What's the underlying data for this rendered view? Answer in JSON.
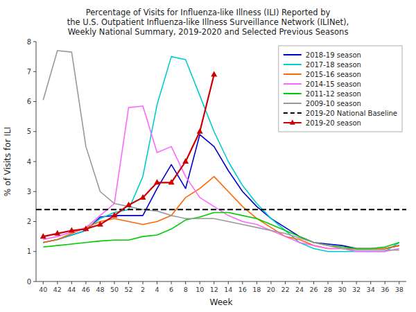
{
  "chart_data": {
    "type": "line",
    "title": "Percentage of Visits for Influenza-like Illness (ILI) Reported by\nthe U.S. Outpatient Influenza-like Illness Surveillance Network (ILINet),\nWeekly National Summary, 2019-2020 and Selected Previous Seasons",
    "x_label": "Week",
    "y_label": "% of Visits for ILI",
    "categories": [
      "40",
      "42",
      "44",
      "46",
      "48",
      "50",
      "52",
      "2",
      "4",
      "6",
      "8",
      "10",
      "12",
      "14",
      "16",
      "18",
      "20",
      "22",
      "24",
      "26",
      "28",
      "30",
      "32",
      "34",
      "36",
      "38"
    ],
    "ylim": [
      0,
      8
    ],
    "yticks": [
      0,
      1,
      2,
      3,
      4,
      5,
      6,
      7,
      8
    ],
    "grid": false,
    "legend": "upper right",
    "baseline": {
      "name": "2019-20 National Baseline",
      "value": 2.4,
      "color": "#000000",
      "line_style": "dashed"
    },
    "series": [
      {
        "name": "2018-19 season",
        "color": "#0000cc",
        "line_style": "solid",
        "values": [
          1.3,
          1.4,
          1.55,
          1.7,
          2.15,
          2.2,
          2.2,
          2.2,
          3.1,
          3.9,
          3.1,
          4.9,
          4.5,
          3.7,
          3.0,
          2.5,
          2.1,
          1.8,
          1.5,
          1.3,
          1.25,
          1.2,
          1.1,
          1.1,
          1.1,
          1.2
        ]
      },
      {
        "name": "2017-18 season",
        "color": "#00cccc",
        "line_style": "solid",
        "values": [
          1.3,
          1.4,
          1.55,
          1.7,
          2.1,
          2.3,
          2.4,
          3.5,
          5.9,
          7.5,
          7.4,
          6.2,
          5.0,
          4.0,
          3.2,
          2.6,
          2.1,
          1.7,
          1.3,
          1.1,
          1.0,
          1.0,
          1.0,
          1.0,
          1.0,
          1.3
        ]
      },
      {
        "name": "2015-16 season",
        "color": "#ff6600",
        "line_style": "solid",
        "values": [
          1.3,
          1.4,
          1.6,
          1.8,
          2.0,
          2.1,
          2.0,
          1.9,
          2.0,
          2.2,
          2.8,
          3.1,
          3.5,
          3.0,
          2.5,
          2.1,
          1.8,
          1.5,
          1.4,
          1.2,
          1.1,
          1.1,
          1.1,
          1.1,
          1.1,
          1.2
        ]
      },
      {
        "name": "2014-15 season",
        "color": "#ff66ff",
        "line_style": "solid",
        "values": [
          1.4,
          1.5,
          1.65,
          1.8,
          2.2,
          2.6,
          5.8,
          5.85,
          4.3,
          4.5,
          3.5,
          2.8,
          2.5,
          2.2,
          2.0,
          1.9,
          1.7,
          1.5,
          1.3,
          1.2,
          1.1,
          1.1,
          1.0,
          1.0,
          1.0,
          1.1
        ]
      },
      {
        "name": "2011-12 season",
        "color": "#00cc00",
        "line_style": "solid",
        "values": [
          1.15,
          1.2,
          1.25,
          1.3,
          1.35,
          1.38,
          1.38,
          1.5,
          1.55,
          1.75,
          2.05,
          2.15,
          2.3,
          2.3,
          2.2,
          2.1,
          1.9,
          1.7,
          1.5,
          1.3,
          1.2,
          1.15,
          1.1,
          1.1,
          1.15,
          1.3
        ]
      },
      {
        "name": "2009-10 season",
        "color": "#999999",
        "line_style": "solid",
        "values": [
          6.05,
          7.7,
          7.65,
          4.5,
          3.0,
          2.6,
          2.5,
          2.4,
          2.35,
          2.2,
          2.1,
          2.1,
          2.1,
          2.0,
          1.9,
          1.8,
          1.7,
          1.6,
          1.45,
          1.3,
          1.2,
          1.1,
          1.05,
          1.05,
          1.05,
          1.05
        ]
      },
      {
        "name": "2019-20 season",
        "color": "#cc0000",
        "line_style": "solid",
        "marker": "triangle",
        "values": [
          1.5,
          1.6,
          1.7,
          1.75,
          1.9,
          2.2,
          2.55,
          2.8,
          3.3,
          3.3,
          4.0,
          5.0,
          6.9,
          null,
          null,
          null,
          null,
          null,
          null,
          null,
          null,
          null,
          null,
          null,
          null,
          null
        ]
      }
    ]
  }
}
